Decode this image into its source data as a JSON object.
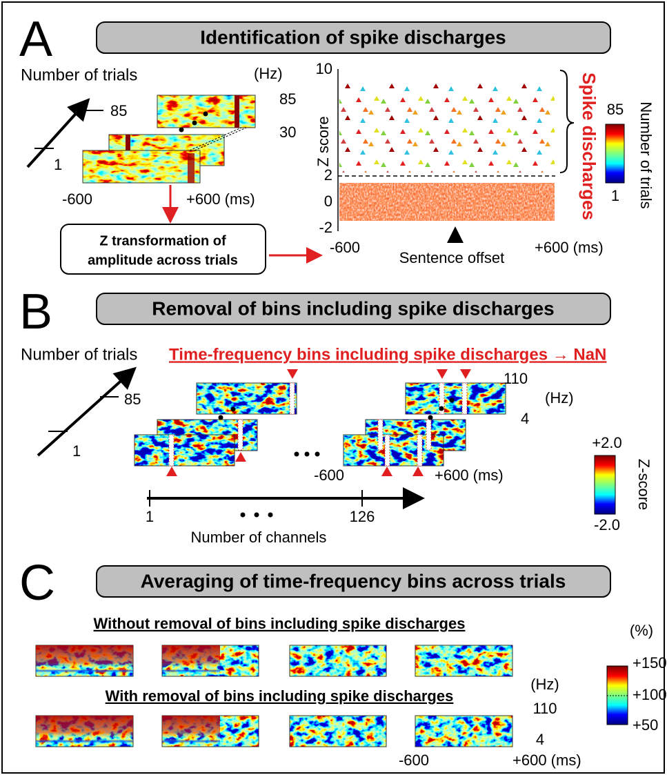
{
  "panel_a": {
    "letter": "A",
    "title": "Identification of spike discharges",
    "trials_label": "Number of trials",
    "trial_ticks": [
      "85",
      "1"
    ],
    "freq_unit": "(Hz)",
    "freq_ticks": [
      "85",
      "30"
    ],
    "time_start": "-600",
    "time_end": "+600 (ms)",
    "box_text": [
      "Z transformation of",
      "amplitude across trials"
    ],
    "scatter": {
      "ylabel": "Z score",
      "yticks": [
        "10",
        "2",
        "0",
        "-2"
      ],
      "x_start": "-600",
      "x_end": "+600 (ms)",
      "marker": "Sentence offset",
      "bracket_label": "Spike discharges"
    },
    "colorbar": {
      "max": "85",
      "min": "1",
      "label": "Number of trials"
    }
  },
  "panel_b": {
    "letter": "B",
    "title": "Removal of bins including spike discharges",
    "trials_label": "Number of trials",
    "nan_note": "Time-frequency bins including spike discharges → NaN",
    "trial_ticks": [
      "85",
      "1"
    ],
    "freq_ticks": [
      "110",
      "4"
    ],
    "freq_unit": "(Hz)",
    "time_start": "-600",
    "time_end": "+600  (ms)",
    "channel_ticks": [
      "1",
      "126"
    ],
    "channel_label": "Number of channels",
    "colorbar": {
      "max": "+2.0",
      "min": "-2.0",
      "label": "Z-score"
    }
  },
  "panel_c": {
    "letter": "C",
    "title": "Averaging of time-frequency bins across trials",
    "row_titles": [
      "Without removal of bins including spike discharges",
      "With removal of bins including spike discharges"
    ],
    "colorbar": {
      "unit": "(%)",
      "ticks": [
        "+150",
        "+100",
        "+50"
      ]
    },
    "freq_unit": "(Hz)",
    "freq_ticks": [
      "110",
      "4"
    ],
    "time_start": "-600",
    "time_end": "+600 (ms)"
  }
}
